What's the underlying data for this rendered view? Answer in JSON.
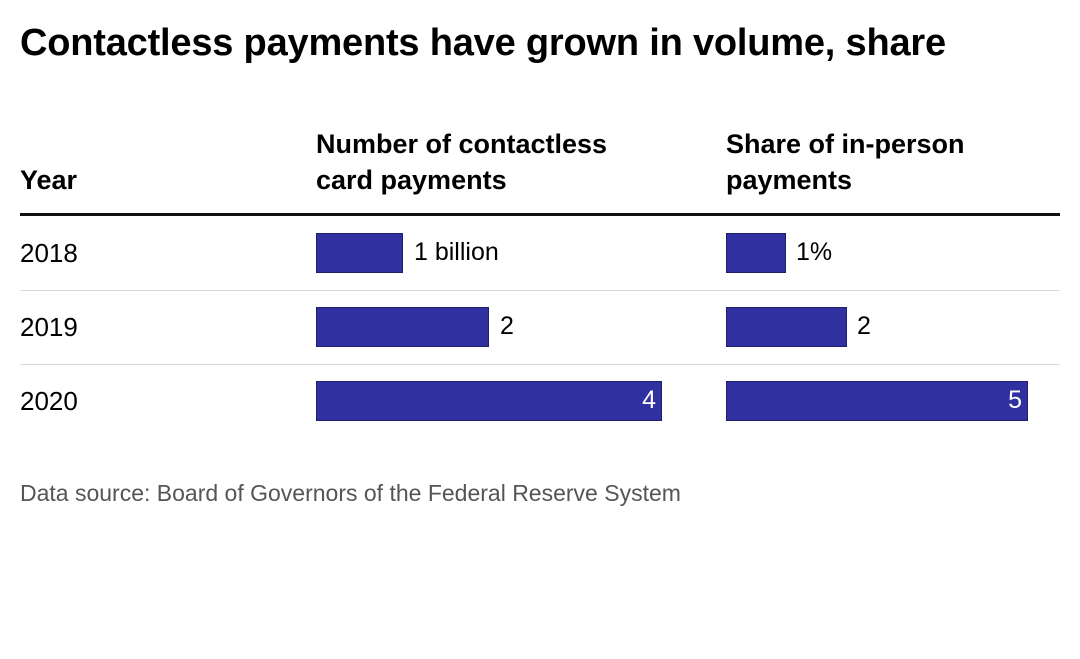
{
  "chart_data": {
    "type": "table",
    "title": "Contactless payments have grown in volume, share",
    "columns": [
      "Year",
      "Number of contactless card payments",
      "Share of in-person payments"
    ],
    "rows": [
      {
        "year": "2018",
        "count": 1,
        "count_label": "1 billion",
        "share": 1,
        "share_label": "1%"
      },
      {
        "year": "2019",
        "count": 2,
        "count_label": "2",
        "share": 2,
        "share_label": "2"
      },
      {
        "year": "2020",
        "count": 4,
        "count_label": "4",
        "share": 5,
        "share_label": "5"
      }
    ],
    "units": {
      "count": "billion",
      "share": "%"
    },
    "source": "Data source: Board of Governors of the Federal Reserve System"
  },
  "colors": {
    "bar": "#3030a0",
    "bar_label_inside": "#ffffff",
    "source_text": "#555555",
    "rule": "#111111",
    "row_divider": "#d9d9d9"
  }
}
